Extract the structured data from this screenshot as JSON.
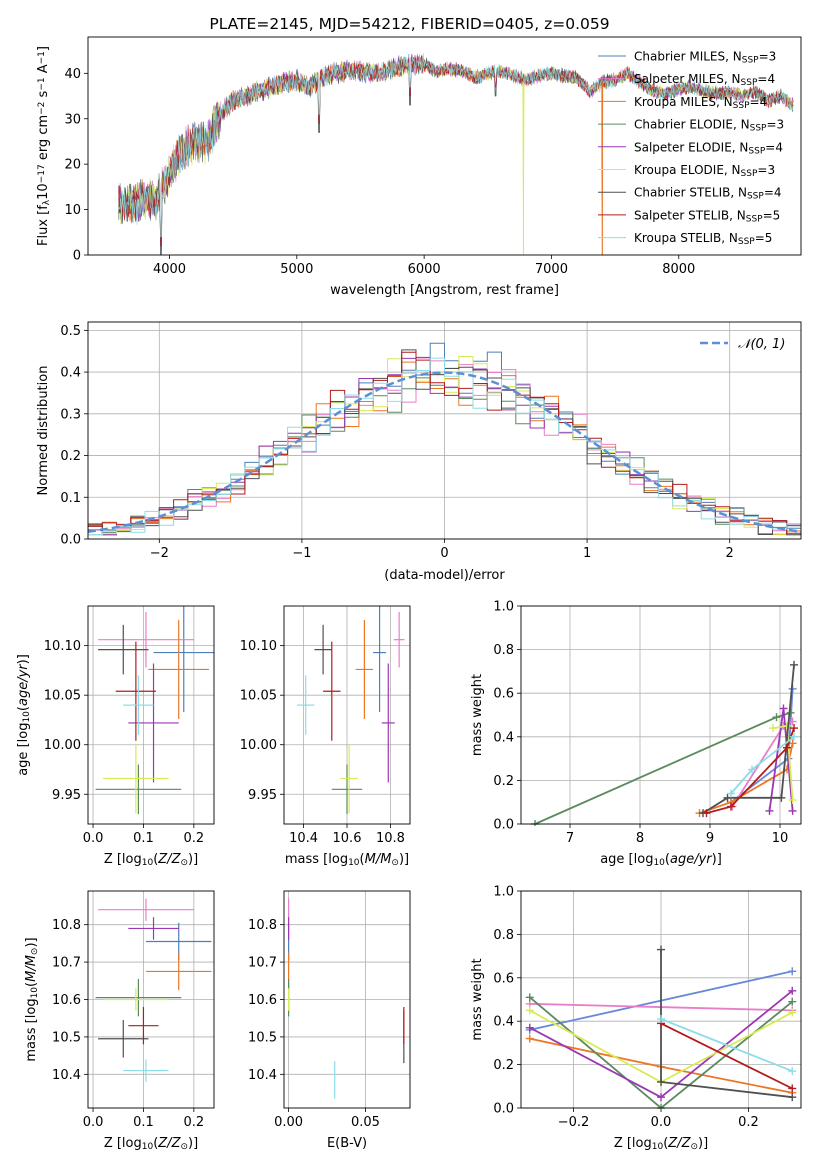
{
  "figure_title": "PLATE=2145, MJD=54212, FIBERID=0405, z=0.059",
  "colors": {
    "Chabrier MILES": "#4e7fb6",
    "Salpeter MILES": "#ea7ccc",
    "Kroupa MILES": "#ec7623",
    "Chabrier ELODIE": "#5a8a5e",
    "Salpeter ELODIE": "#9b37b3",
    "Kroupa ELODIE": "#d8ea56",
    "Chabrier STELIB": "#505050",
    "Salpeter STELIB": "#b31c1c",
    "Kroupa STELIB": "#8ddde8",
    "age_mass_blue": "#6689d8",
    "normal_curve": "#5b8fd6"
  },
  "chart_data": [
    {
      "id": "spectrum",
      "type": "line",
      "title": "PLATE=2145, MJD=54212, FIBERID=0405, z=0.059",
      "xlabel": "wavelength [Angstrom, rest frame]",
      "ylabel_parts": [
        "Flux [f",
        "λ",
        "10",
        "−17",
        " erg cm",
        "−2",
        " s",
        "−1",
        " A",
        "−1",
        "]"
      ],
      "xlim": [
        3360,
        8960
      ],
      "ylim": [
        0,
        48
      ],
      "xticks": [
        4000,
        5000,
        6000,
        7000,
        8000
      ],
      "yticks": [
        0,
        10,
        20,
        30,
        40
      ],
      "grid": false,
      "legend_position": "top-right",
      "legend": [
        {
          "label": "Chabrier MILES, N",
          "sub": "SSP",
          "tail": "=3",
          "color": "#4e7fb6"
        },
        {
          "label": "Salpeter MILES, N",
          "sub": "SSP",
          "tail": "=4",
          "color": "#ea7ccc"
        },
        {
          "label": "Kroupa MILES, N",
          "sub": "SSP",
          "tail": "=4",
          "color": "#ec7623"
        },
        {
          "label": "Chabrier ELODIE, N",
          "sub": "SSP",
          "tail": "=3",
          "color": "#5a8a5e"
        },
        {
          "label": "Salpeter ELODIE, N",
          "sub": "SSP",
          "tail": "=4",
          "color": "#9b37b3"
        },
        {
          "label": "Kroupa ELODIE, N",
          "sub": "SSP",
          "tail": "=3",
          "color": "#d8ea56"
        },
        {
          "label": "Chabrier STELIB, N",
          "sub": "SSP",
          "tail": "=4",
          "color": "#505050"
        },
        {
          "label": "Salpeter STELIB, N",
          "sub": "SSP",
          "tail": "=5",
          "color": "#b31c1c"
        },
        {
          "label": "Kroupa STELIB, N",
          "sub": "SSP",
          "tail": "=5",
          "color": "#8ddde8"
        }
      ],
      "continuum_x": [
        3600,
        3700,
        3800,
        3900,
        4000,
        4100,
        4200,
        4300,
        4400,
        4500,
        4600,
        4700,
        4800,
        4900,
        5000,
        5100,
        5200,
        5300,
        5400,
        5500,
        5600,
        5700,
        5800,
        5900,
        6000,
        6100,
        6200,
        6300,
        6400,
        6500,
        6600,
        6700,
        6800,
        6900,
        7000,
        7100,
        7200,
        7300,
        7400,
        7500,
        7600,
        7700,
        7800,
        7900,
        8000,
        8100,
        8200,
        8300,
        8400,
        8500,
        8600,
        8700,
        8800,
        8900
      ],
      "continuum_y": [
        11,
        11.5,
        12,
        12,
        18,
        23,
        25,
        25,
        31,
        34,
        35,
        36,
        37,
        38,
        38.5,
        37,
        39,
        40,
        40.5,
        40.5,
        40,
        40.5,
        41.5,
        42,
        42,
        40.5,
        41,
        40.5,
        39,
        40,
        40.5,
        39.5,
        38.5,
        39.5,
        40,
        39.5,
        39,
        36,
        38,
        38.5,
        40,
        38,
        36,
        35.5,
        36.5,
        37,
        36,
        35.5,
        36,
        35,
        36,
        34,
        35,
        33
      ],
      "absorption_lines": [
        {
          "x": 3933,
          "y": 0
        },
        {
          "x": 5175,
          "y": 27
        },
        {
          "x": 5890,
          "y": 33
        },
        {
          "x": 6563,
          "y": 35
        }
      ],
      "spikes": [
        {
          "x": 6780,
          "y": 0,
          "color": "#d8ea56"
        },
        {
          "x": 7400,
          "y": 0,
          "color": "#ec7623"
        }
      ]
    },
    {
      "id": "residual-histogram",
      "type": "bar",
      "xlabel": "(data-model)/error",
      "ylabel": "Normed distribution",
      "xlim": [
        -2.5,
        2.5
      ],
      "ylim": [
        0,
        0.52
      ],
      "xticks": [
        -2,
        -1,
        0,
        1,
        2
      ],
      "xticklabels": [
        "−2",
        "−1",
        "0",
        "1",
        "2"
      ],
      "yticks": [
        0,
        0.1,
        0.2,
        0.3,
        0.4,
        0.5
      ],
      "yticklabels": [
        "0.0",
        "0.1",
        "0.2",
        "0.3",
        "0.4",
        "0.5"
      ],
      "grid": true,
      "legend_position": "top-right",
      "legend_label": "𝒩(0, 1)",
      "bin_width": 0.1,
      "series_names_from_legend": [
        "Chabrier MILES",
        "Salpeter MILES",
        "Kroupa MILES",
        "Chabrier ELODIE",
        "Salpeter ELODIE",
        "Kroupa ELODIE",
        "Chabrier STELIB",
        "Salpeter STELIB",
        "Kroupa STELIB"
      ]
    },
    {
      "id": "z-vs-age",
      "type": "scatter",
      "xlabel": "Z [log",
      "xlabel_sub": "10",
      "xlabel_tail": "(Z/Z",
      "xlabel_end": ")]",
      "ylabel": "age  [log",
      "ylabel_sub": "10",
      "ylabel_tail": "(age/yr)]",
      "xlim": [
        -0.01,
        0.24
      ],
      "ylim": [
        9.92,
        10.14
      ],
      "xticks": [
        0.0,
        0.1,
        0.2
      ],
      "xticklabels": [
        "0.0",
        "0.1",
        "0.2"
      ],
      "yticks": [
        9.95,
        10.0,
        10.05,
        10.1
      ],
      "yticklabels": [
        "9.95",
        "10.00",
        "10.05",
        "10.10"
      ],
      "grid": true,
      "points": [
        {
          "name": "Chabrier MILES",
          "x": 0.18,
          "y": 10.093,
          "xerr": 0.06,
          "yerr": 0.06
        },
        {
          "name": "Salpeter MILES",
          "x": 0.105,
          "y": 10.106,
          "xerr": 0.095,
          "yerr": 0.028
        },
        {
          "name": "Kroupa MILES",
          "x": 0.17,
          "y": 10.076,
          "xerr": 0.06,
          "yerr": 0.05
        },
        {
          "name": "Chabrier ELODIE",
          "x": 0.09,
          "y": 9.955,
          "xerr": 0.085,
          "yerr": 0.025
        },
        {
          "name": "Salpeter ELODIE",
          "x": 0.12,
          "y": 10.022,
          "xerr": 0.05,
          "yerr": 0.06
        },
        {
          "name": "Kroupa ELODIE",
          "x": 0.085,
          "y": 9.966,
          "xerr": 0.065,
          "yerr": 0.035
        },
        {
          "name": "Chabrier STELIB",
          "x": 0.06,
          "y": 10.096,
          "xerr": 0.05,
          "yerr": 0.025
        },
        {
          "name": "Salpeter STELIB",
          "x": 0.085,
          "y": 10.054,
          "xerr": 0.04,
          "yerr": 0.05
        },
        {
          "name": "Kroupa STELIB",
          "x": 0.09,
          "y": 10.04,
          "xerr": 0.03,
          "yerr": 0.03
        }
      ]
    },
    {
      "id": "mass-vs-age",
      "type": "scatter",
      "xlabel": "mass [log",
      "xlabel_sub": "10",
      "xlabel_tail": "(M/M",
      "xlabel_end": ")]",
      "xlim": [
        10.31,
        10.89
      ],
      "ylim": [
        9.92,
        10.14
      ],
      "xticks": [
        10.4,
        10.6,
        10.8
      ],
      "xticklabels": [
        "10.4",
        "10.6",
        "10.8"
      ],
      "yticks": [
        9.95,
        10.0,
        10.05,
        10.1
      ],
      "yticklabels": [
        "9.95",
        "10.00",
        "10.05",
        "10.10"
      ],
      "grid": true,
      "points": [
        {
          "name": "Chabrier MILES",
          "x": 10.75,
          "y": 10.093,
          "xerr": 0.03,
          "yerr": 0.06
        },
        {
          "name": "Salpeter MILES",
          "x": 10.84,
          "y": 10.106,
          "xerr": 0.025,
          "yerr": 0.028
        },
        {
          "name": "Kroupa MILES",
          "x": 10.68,
          "y": 10.076,
          "xerr": 0.04,
          "yerr": 0.05
        },
        {
          "name": "Chabrier ELODIE",
          "x": 10.6,
          "y": 9.955,
          "xerr": 0.07,
          "yerr": 0.025
        },
        {
          "name": "Salpeter ELODIE",
          "x": 10.79,
          "y": 10.022,
          "xerr": 0.03,
          "yerr": 0.06
        },
        {
          "name": "Kroupa ELODIE",
          "x": 10.61,
          "y": 9.966,
          "xerr": 0.04,
          "yerr": 0.035
        },
        {
          "name": "Chabrier STELIB",
          "x": 10.49,
          "y": 10.096,
          "xerr": 0.04,
          "yerr": 0.025
        },
        {
          "name": "Salpeter STELIB",
          "x": 10.53,
          "y": 10.054,
          "xerr": 0.04,
          "yerr": 0.05
        },
        {
          "name": "Kroupa STELIB",
          "x": 10.41,
          "y": 10.04,
          "xerr": 0.04,
          "yerr": 0.03
        }
      ]
    },
    {
      "id": "age-mass-weight",
      "type": "line",
      "xlabel": "age  [log",
      "xlabel_sub": "10",
      "xlabel_tail": "(age/yr)]",
      "ylabel": "mass weight",
      "xlim": [
        6.3,
        10.3
      ],
      "ylim": [
        0,
        1
      ],
      "xticks": [
        7,
        8,
        9,
        10
      ],
      "xticklabels": [
        "7",
        "8",
        "9",
        "10"
      ],
      "yticks": [
        0,
        0.2,
        0.4,
        0.6,
        0.8,
        1.0
      ],
      "yticklabels": [
        "0.0",
        "0.2",
        "0.4",
        "0.6",
        "0.8",
        "1.0"
      ],
      "grid": true,
      "series": [
        {
          "name": "Chabrier MILES",
          "color": "#6689d8",
          "x": [
            9.3,
            10.12,
            10.18
          ],
          "y": [
            0.1,
            0.3,
            0.62
          ]
        },
        {
          "name": "Salpeter MILES",
          "color": "#ea7ccc",
          "x": [
            9.32,
            10.05,
            10.18
          ],
          "y": [
            0.08,
            0.45,
            0.47
          ]
        },
        {
          "name": "Kroupa MILES",
          "color": "#ec7623",
          "x": [
            8.85,
            9.3,
            10.1,
            10.18
          ],
          "y": [
            0.05,
            0.1,
            0.25,
            0.37
          ]
        },
        {
          "name": "Chabrier ELODIE",
          "color": "#5a8a5e",
          "x": [
            6.5,
            9.95,
            10.15
          ],
          "y": [
            0.0,
            0.49,
            0.51
          ]
        },
        {
          "name": "Salpeter ELODIE",
          "color": "#9b37b3",
          "x": [
            9.85,
            10.05,
            10.18
          ],
          "y": [
            0.06,
            0.53,
            0.06
          ]
        },
        {
          "name": "Kroupa ELODIE",
          "color": "#d8ea56",
          "x": [
            9.9,
            10.1,
            10.18
          ],
          "y": [
            0.44,
            0.45,
            0.11
          ]
        },
        {
          "name": "Chabrier STELIB",
          "color": "#505050",
          "x": [
            8.9,
            9.25,
            10.02,
            10.2
          ],
          "y": [
            0.05,
            0.12,
            0.12,
            0.73
          ]
        },
        {
          "name": "Salpeter STELIB",
          "color": "#b31c1c",
          "x": [
            8.95,
            9.3,
            10.1,
            10.2
          ],
          "y": [
            0.05,
            0.08,
            0.35,
            0.44
          ]
        },
        {
          "name": "Kroupa STELIB",
          "color": "#8ddde8",
          "x": [
            9.3,
            9.6,
            10.2
          ],
          "y": [
            0.14,
            0.25,
            0.4
          ]
        }
      ]
    },
    {
      "id": "z-vs-mass",
      "type": "scatter",
      "xlabel": "Z [log",
      "xlabel_sub": "10",
      "xlabel_tail": "(Z/Z",
      "xlabel_end": ")]",
      "ylabel": "mass [log",
      "ylabel_sub": "10",
      "ylabel_tail": "(M/M",
      "ylabel_end": ")]",
      "xlim": [
        -0.01,
        0.24
      ],
      "ylim": [
        10.31,
        10.89
      ],
      "xticks": [
        0.0,
        0.1,
        0.2
      ],
      "xticklabels": [
        "0.0",
        "0.1",
        "0.2"
      ],
      "yticks": [
        10.4,
        10.5,
        10.6,
        10.7,
        10.8
      ],
      "yticklabels": [
        "10.4",
        "10.5",
        "10.6",
        "10.7",
        "10.8"
      ],
      "grid": true,
      "points": [
        {
          "name": "Chabrier MILES",
          "x": 0.17,
          "y": 10.755,
          "xerr": 0.065,
          "yerr": 0.05
        },
        {
          "name": "Salpeter MILES",
          "x": 0.105,
          "y": 10.84,
          "xerr": 0.095,
          "yerr": 0.03
        },
        {
          "name": "Kroupa MILES",
          "x": 0.17,
          "y": 10.675,
          "xerr": 0.065,
          "yerr": 0.05
        },
        {
          "name": "Chabrier ELODIE",
          "x": 0.09,
          "y": 10.605,
          "xerr": 0.085,
          "yerr": 0.05
        },
        {
          "name": "Salpeter ELODIE",
          "x": 0.12,
          "y": 10.79,
          "xerr": 0.05,
          "yerr": 0.03
        },
        {
          "name": "Kroupa ELODIE",
          "x": 0.085,
          "y": 10.6,
          "xerr": 0.065,
          "yerr": 0.03
        },
        {
          "name": "Chabrier STELIB",
          "x": 0.06,
          "y": 10.495,
          "xerr": 0.05,
          "yerr": 0.05
        },
        {
          "name": "Salpeter STELIB",
          "x": 0.1,
          "y": 10.53,
          "xerr": 0.03,
          "yerr": 0.05
        },
        {
          "name": "Kroupa STELIB",
          "x": 0.105,
          "y": 10.41,
          "xerr": 0.045,
          "yerr": 0.03
        }
      ]
    },
    {
      "id": "ebv-vs-mass",
      "type": "scatter",
      "xlabel": "E(B-V)",
      "xlim": [
        -0.003,
        0.079
      ],
      "ylim": [
        10.31,
        10.89
      ],
      "xticks": [
        0.0,
        0.05
      ],
      "xticklabels": [
        "0.00",
        "0.05"
      ],
      "yticks": [
        10.4,
        10.5,
        10.6,
        10.7,
        10.8
      ],
      "yticklabels": [
        "10.4",
        "10.5",
        "10.6",
        "10.7",
        "10.8"
      ],
      "grid": true,
      "points": [
        {
          "name": "Chabrier MILES",
          "x": 0.0,
          "y": 10.755,
          "xerr": 0.0,
          "yerr": 0.05
        },
        {
          "name": "Salpeter MILES",
          "x": 0.0,
          "y": 10.84,
          "xerr": 0.0,
          "yerr": 0.03
        },
        {
          "name": "Kroupa MILES",
          "x": 0.0,
          "y": 10.675,
          "xerr": 0.0,
          "yerr": 0.05
        },
        {
          "name": "Chabrier ELODIE",
          "x": 0.0,
          "y": 10.605,
          "xerr": 0.0,
          "yerr": 0.05
        },
        {
          "name": "Salpeter ELODIE",
          "x": 0.0,
          "y": 10.79,
          "xerr": 0.0,
          "yerr": 0.03
        },
        {
          "name": "Kroupa ELODIE",
          "x": 0.0,
          "y": 10.6,
          "xerr": 0.0,
          "yerr": 0.03
        },
        {
          "name": "Chabrier STELIB",
          "x": 0.075,
          "y": 10.5,
          "xerr": 0.0,
          "yerr": 0.07
        },
        {
          "name": "Salpeter STELIB",
          "x": 0.075,
          "y": 10.53,
          "xerr": 0.0,
          "yerr": 0.05
        },
        {
          "name": "Kroupa STELIB",
          "x": 0.03,
          "y": 10.385,
          "xerr": 0.0,
          "yerr": 0.05
        }
      ]
    },
    {
      "id": "z-mass-weight",
      "type": "line",
      "xlabel": "Z [log",
      "xlabel_sub": "10",
      "xlabel_tail": "(Z/Z",
      "xlabel_end": ")]",
      "ylabel": "mass weight",
      "xlim": [
        -0.32,
        0.32
      ],
      "ylim": [
        0,
        1
      ],
      "xticks": [
        -0.2,
        0.0,
        0.2
      ],
      "xticklabels": [
        "−0.2",
        "0.0",
        "0.2"
      ],
      "yticks": [
        0,
        0.2,
        0.4,
        0.6,
        0.8,
        1.0
      ],
      "yticklabels": [
        "0.0",
        "0.2",
        "0.4",
        "0.6",
        "0.8",
        "1.0"
      ],
      "grid": true,
      "series": [
        {
          "name": "Chabrier MILES",
          "color": "#6689d8",
          "x": [
            -0.3,
            0.3
          ],
          "y": [
            0.36,
            0.63
          ]
        },
        {
          "name": "Salpeter MILES",
          "color": "#ea7ccc",
          "x": [
            -0.3,
            0.3
          ],
          "y": [
            0.48,
            0.45
          ]
        },
        {
          "name": "Kroupa MILES",
          "color": "#ec7623",
          "x": [
            -0.3,
            0.0,
            0.3
          ],
          "y": [
            0.32,
            0.19,
            0.07
          ]
        },
        {
          "name": "Chabrier ELODIE",
          "color": "#5a8a5e",
          "x": [
            -0.3,
            0.0,
            0.3
          ],
          "y": [
            0.51,
            0.0,
            0.49
          ]
        },
        {
          "name": "Salpeter ELODIE",
          "color": "#9b37b3",
          "x": [
            -0.3,
            0.0,
            0.3
          ],
          "y": [
            0.37,
            0.05,
            0.54
          ]
        },
        {
          "name": "Kroupa ELODIE",
          "color": "#d8ea56",
          "x": [
            -0.3,
            0.0,
            0.3
          ],
          "y": [
            0.45,
            0.12,
            0.44
          ]
        },
        {
          "name": "Chabrier STELIB",
          "color": "#505050",
          "x": [
            0.0,
            0.0,
            0.3
          ],
          "y": [
            0.73,
            0.12,
            0.05
          ]
        },
        {
          "name": "Salpeter STELIB",
          "color": "#b31c1c",
          "x": [
            0.0,
            0.3
          ],
          "y": [
            0.39,
            0.09
          ]
        },
        {
          "name": "Kroupa STELIB",
          "color": "#8ddde8",
          "x": [
            0.0,
            0.3
          ],
          "y": [
            0.41,
            0.17
          ]
        }
      ]
    }
  ]
}
